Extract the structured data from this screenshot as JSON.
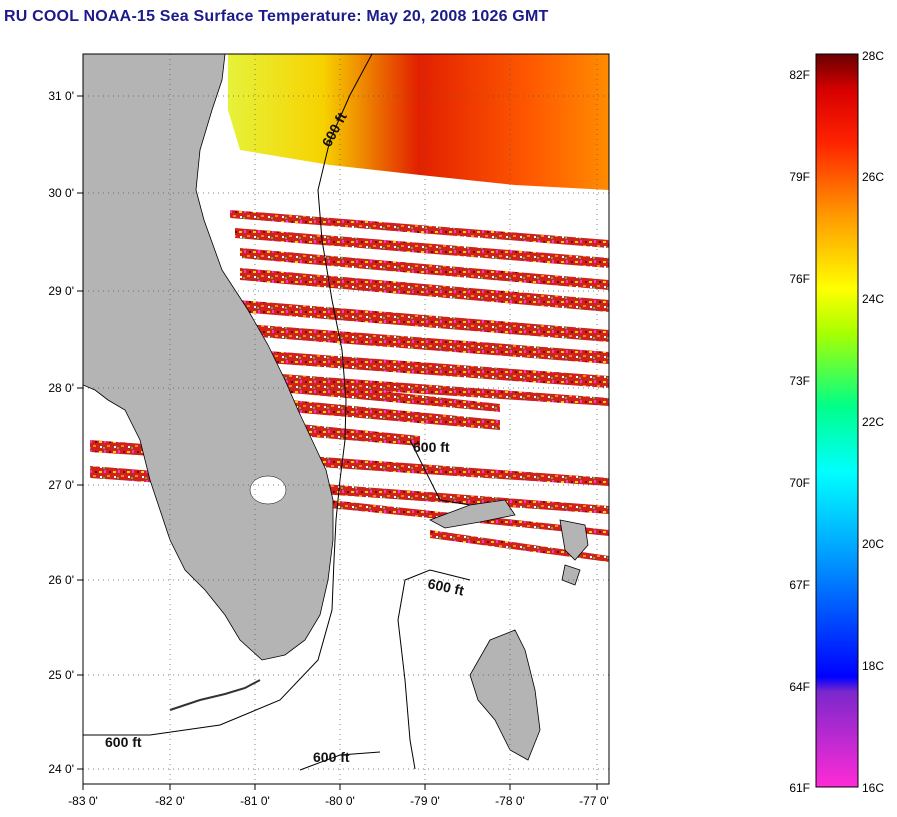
{
  "title": "RU COOL  NOAA-15  Sea Surface Temperature:  May 20, 2008 1026 GMT",
  "map": {
    "lat_labels": [
      "31 0'",
      "30 0'",
      "29 0'",
      "28 0'",
      "27 0'",
      "26 0'",
      "25 0'",
      "24 0'"
    ],
    "lon_labels": [
      "-83 0'",
      "-82 0'",
      "-81 0'",
      "-80 0'",
      "-79 0'",
      "-78 0'",
      "-77 0'"
    ],
    "lat_range": [
      23.85,
      31.45
    ],
    "lon_range": [
      -83.0,
      -76.85
    ],
    "contour_labels": [
      "600 ft",
      "600 ft",
      "600 ft",
      "600 ft",
      "600 ft"
    ],
    "land_color": "#b4b4b4"
  },
  "colorbar": {
    "celsius_labels": [
      "28C",
      "26C",
      "24C",
      "22C",
      "20C",
      "18C",
      "16C"
    ],
    "fahrenheit_labels": [
      "82F",
      "79F",
      "76F",
      "73F",
      "70F",
      "67F",
      "64F",
      "61F"
    ],
    "range_c": [
      16,
      28
    ]
  }
}
